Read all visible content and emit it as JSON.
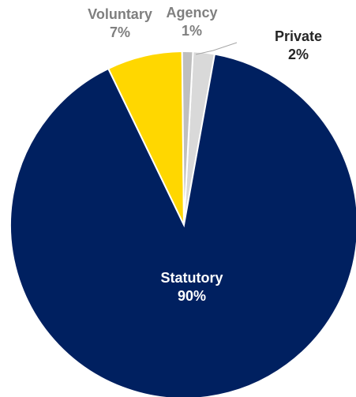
{
  "chart_data": {
    "type": "pie",
    "title": "",
    "start_at": "top",
    "direction": "clockwise",
    "slices": [
      {
        "name": "Statutory",
        "value": 90,
        "label": "90%",
        "color": "#002060",
        "label_color": "#ffffff",
        "stroke": "#ffffff"
      },
      {
        "name": "Voluntary",
        "value": 7,
        "label": "7%",
        "color": "#FFD700",
        "label_color": "#7f7f7f",
        "stroke": "#ffffff"
      },
      {
        "name": "Agency",
        "value": 1,
        "label": "1%",
        "color": "#BFBFBF",
        "label_color": "#7f7f7f",
        "stroke": "#ffffff"
      },
      {
        "name": "Private",
        "value": 2,
        "label": "2%",
        "color": "#D9D9D9",
        "label_color": "#262626",
        "stroke": "#ffffff"
      }
    ],
    "legend": "none"
  }
}
